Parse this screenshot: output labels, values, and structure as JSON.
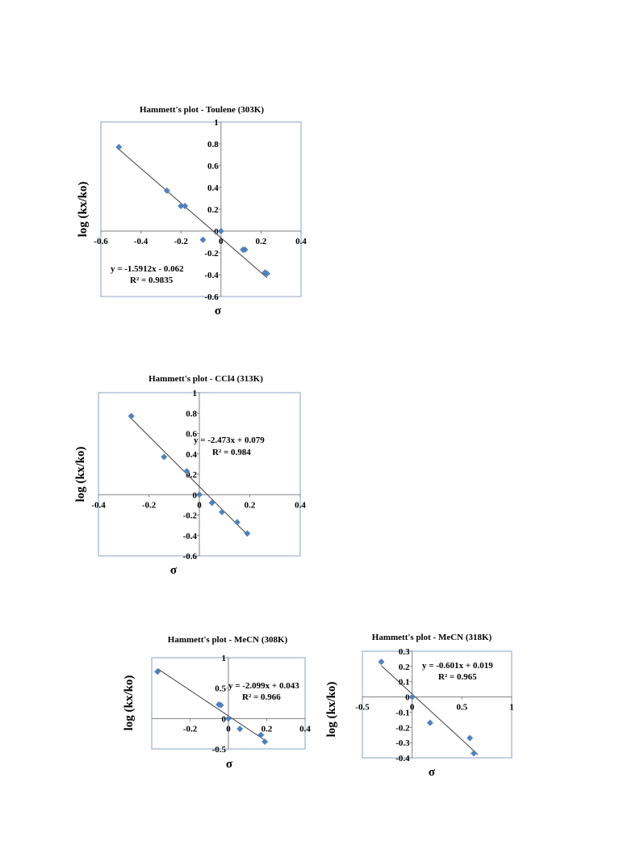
{
  "chart_data": [
    {
      "type": "scatter",
      "title": "Hammett's plot - Toulene (303K)",
      "xlabel": "σ",
      "ylabel": "log (kx/ko)",
      "xlim": [
        -0.6,
        0.4
      ],
      "ylim": [
        -0.6,
        1
      ],
      "xticks": [
        -0.6,
        -0.4,
        -0.2,
        0,
        0.2,
        0.4
      ],
      "yticks": [
        -0.6,
        -0.4,
        -0.2,
        0,
        0.2,
        0.4,
        0.6,
        0.8,
        1
      ],
      "xtick_labels": [
        "-0.6",
        "-0.4",
        "-0.2",
        "0",
        "0.2",
        "0.4"
      ],
      "ytick_labels": [
        "-0.6",
        "-0.4",
        "-0.2",
        "0",
        "0.2",
        "0.4",
        "0.6",
        "0.8",
        "1"
      ],
      "points": [
        {
          "x": -0.51,
          "y": 0.77
        },
        {
          "x": -0.27,
          "y": 0.37
        },
        {
          "x": -0.2,
          "y": 0.23
        },
        {
          "x": -0.18,
          "y": 0.23
        },
        {
          "x": -0.09,
          "y": -0.08
        },
        {
          "x": 0,
          "y": 0
        },
        {
          "x": 0.11,
          "y": -0.17
        },
        {
          "x": 0.12,
          "y": -0.17
        },
        {
          "x": 0.22,
          "y": -0.38
        },
        {
          "x": 0.23,
          "y": -0.39
        }
      ],
      "trendline": {
        "slope": -1.5912,
        "intercept": -0.062,
        "x_range": [
          -0.51,
          0.23
        ]
      },
      "equation_text": "y = -1.5912x - 0.062",
      "r2_text": "R² = 0.9835",
      "grid": false
    },
    {
      "type": "scatter",
      "title": "Hammett's plot - CCl4 (313K)",
      "xlabel": "σ",
      "ylabel": "log (kx/ko)",
      "xlim": [
        -0.4,
        0.4
      ],
      "ylim": [
        -0.6,
        1
      ],
      "xticks": [
        -0.4,
        -0.2,
        0,
        0.2,
        0.4
      ],
      "yticks": [
        -0.6,
        -0.4,
        -0.2,
        0,
        0.2,
        0.4,
        0.6,
        0.8,
        1
      ],
      "xtick_labels": [
        "-0.4",
        "-0.2",
        "0",
        "0.2",
        "0.4"
      ],
      "ytick_labels": [
        "-0.6",
        "-0.4",
        "-0.2",
        "0",
        "0.2",
        "0.4",
        "0.6",
        "0.8",
        "1"
      ],
      "points": [
        {
          "x": -0.27,
          "y": 0.77
        },
        {
          "x": -0.14,
          "y": 0.37
        },
        {
          "x": -0.05,
          "y": 0.23
        },
        {
          "x": 0,
          "y": 0
        },
        {
          "x": 0.05,
          "y": -0.08
        },
        {
          "x": 0.09,
          "y": -0.17
        },
        {
          "x": 0.15,
          "y": -0.27
        },
        {
          "x": 0.19,
          "y": -0.38
        }
      ],
      "trendline": {
        "slope": -2.473,
        "intercept": 0.079,
        "x_range": [
          -0.27,
          0.19
        ]
      },
      "equation_text": "y = -2.473x + 0.079",
      "r2_text": "R² = 0.984",
      "grid": false
    },
    {
      "type": "scatter",
      "title": "Hammett's plot - MeCN (308K)",
      "xlabel": "σ",
      "ylabel": "log (kx/ko)",
      "xlim": [
        -0.4,
        0.4
      ],
      "ylim": [
        -0.5,
        1
      ],
      "xticks": [
        -0.2,
        0,
        0.2,
        0.4
      ],
      "yticks": [
        -0.5,
        0,
        0.5,
        1
      ],
      "xtick_labels": [
        "-0.2",
        "0",
        "0.2",
        "0.4"
      ],
      "ytick_labels": [
        "-0.5",
        "0",
        "0.5",
        "1"
      ],
      "points": [
        {
          "x": -0.37,
          "y": 0.77
        },
        {
          "x": -0.05,
          "y": 0.23
        },
        {
          "x": -0.04,
          "y": 0.22
        },
        {
          "x": 0,
          "y": 0
        },
        {
          "x": 0.06,
          "y": -0.17
        },
        {
          "x": 0.17,
          "y": -0.27
        },
        {
          "x": 0.19,
          "y": -0.38
        }
      ],
      "trendline": {
        "slope": -2.099,
        "intercept": 0.043,
        "x_range": [
          -0.37,
          0.19
        ]
      },
      "equation_text": "y = -2.099x + 0.043",
      "r2_text": "R² = 0.966",
      "grid": false
    },
    {
      "type": "scatter",
      "title": "Hammett's plot - MeCN (318K)",
      "xlabel": "σ",
      "ylabel": "log (kx/ko)",
      "xlim": [
        -0.5,
        1
      ],
      "ylim": [
        -0.4,
        0.3
      ],
      "xticks": [
        -0.5,
        0,
        0.5,
        1
      ],
      "yticks": [
        -0.4,
        -0.3,
        -0.2,
        -0.1,
        0,
        0.1,
        0.2,
        0.3
      ],
      "xtick_labels": [
        "-0.5",
        "0",
        "0.5",
        "1"
      ],
      "ytick_labels": [
        "-0.4",
        "-0.3",
        "-0.2",
        "-0.1",
        "0",
        "0.1",
        "0.2",
        "0.3"
      ],
      "points": [
        {
          "x": -0.31,
          "y": 0.23
        },
        {
          "x": 0,
          "y": 0
        },
        {
          "x": 0.18,
          "y": -0.17
        },
        {
          "x": 0.58,
          "y": -0.27
        },
        {
          "x": 0.62,
          "y": -0.37
        }
      ],
      "trendline": {
        "slope": -0.601,
        "intercept": 0.019,
        "x_range": [
          -0.31,
          0.66
        ]
      },
      "equation_text": "y = -0.601x + 0.019",
      "r2_text": "R² = 0.965",
      "grid": false
    }
  ]
}
